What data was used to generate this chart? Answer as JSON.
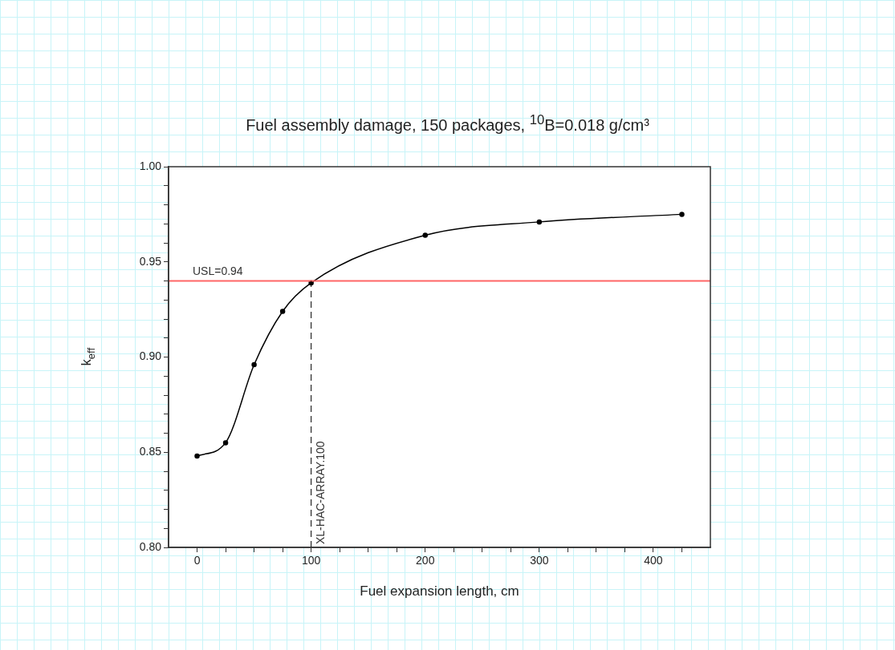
{
  "chart_data": {
    "type": "line",
    "title": "Fuel assembly damage, 150 packages, $^{10}$B=0.018 g/cm³",
    "xlabel": "Fuel expansion length, cm",
    "ylabel": "k$_{eff}$",
    "x": [
      0,
      25,
      50,
      75,
      100,
      200,
      300,
      425
    ],
    "series": [
      {
        "color": "#000000",
        "values": [
          0.848,
          0.855,
          0.896,
          0.924,
          0.939,
          0.964,
          0.971,
          0.975
        ]
      }
    ],
    "xlim": [
      -25,
      450
    ],
    "xticks": [
      0,
      {
        "value": 25,
        "label": null
      },
      {
        "value": 50,
        "label": null
      },
      {
        "value": 75,
        "label": null
      },
      100,
      {
        "value": 125,
        "label": null
      },
      {
        "value": 150,
        "label": null
      },
      {
        "value": 175,
        "label": null
      },
      200,
      {
        "value": 225,
        "label": null
      },
      {
        "value": 250,
        "label": null
      },
      {
        "value": 275,
        "label": null
      },
      300,
      {
        "value": 325,
        "label": null
      },
      {
        "value": 350,
        "label": null
      },
      {
        "value": 375,
        "label": null
      },
      400,
      {
        "value": 425,
        "label": null
      }
    ],
    "ylim": [
      0.8,
      1.0
    ],
    "yticks": [
      {
        "value": 0.8,
        "label": "0.80"
      },
      {
        "value": 0.81,
        "label": null
      },
      {
        "value": 0.82,
        "label": null
      },
      {
        "value": 0.83,
        "label": null
      },
      {
        "value": 0.84,
        "label": null
      },
      {
        "value": 0.85,
        "label": "0.85"
      },
      {
        "value": 0.86,
        "label": null
      },
      {
        "value": 0.87,
        "label": null
      },
      {
        "value": 0.88,
        "label": null
      },
      {
        "value": 0.89,
        "label": null
      },
      {
        "value": 0.9,
        "label": "0.90"
      },
      {
        "value": 0.91,
        "label": null
      },
      {
        "value": 0.92,
        "label": null
      },
      {
        "value": 0.93,
        "label": null
      },
      {
        "value": 0.94,
        "label": null
      },
      {
        "value": 0.95,
        "label": "0.95"
      },
      {
        "value": 0.96,
        "label": null
      },
      {
        "value": 0.97,
        "label": null
      },
      {
        "value": 0.98,
        "label": null
      },
      {
        "value": 0.99,
        "label": null
      },
      {
        "value": 1.0,
        "label": "1.00"
      }
    ],
    "ref_lines": [
      {
        "axis": "y",
        "value": 0.94,
        "label": "USL=0.94",
        "color": "#ff6666"
      },
      {
        "axis": "x",
        "value": 100,
        "label": "XL-HAC-ARRAY.100",
        "color": "#000000",
        "line_style": "dashed"
      }
    ],
    "marker": "circle",
    "line_style": "solid",
    "grid": false,
    "legend": false
  }
}
